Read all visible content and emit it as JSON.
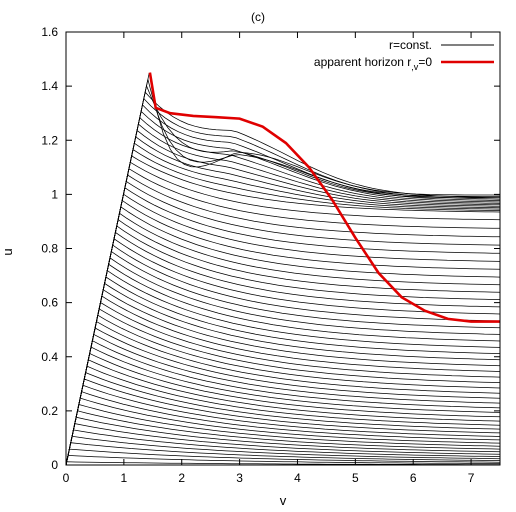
{
  "chart_data": {
    "type": "line",
    "title": "(c)",
    "xlabel": "v",
    "ylabel": "u",
    "xlim": [
      0,
      7.5
    ],
    "ylim": [
      0,
      1.6
    ],
    "x_ticks": [
      0,
      1,
      2,
      3,
      4,
      5,
      6,
      7
    ],
    "y_ticks": [
      0,
      0.2,
      0.4,
      0.6,
      0.8,
      1,
      1.2,
      1.4,
      1.6
    ],
    "grid": false,
    "legend_position": "top-right",
    "legend": [
      {
        "label": "r=const.",
        "color": "#000000"
      },
      {
        "label_main": "apparent horizon r",
        "label_sub": ",v",
        "label_tail": "=0",
        "color": "#e00000"
      }
    ],
    "series": [
      {
        "name": "r=const.",
        "kind": "family",
        "color": "#000000",
        "curve_count": 62,
        "origin": [
          0,
          0
        ],
        "apex": [
          1.45,
          1.46
        ],
        "boundary_at_x_max": [
          1.0,
          0.0
        ],
        "mid_level_at_v3": 1.28
      },
      {
        "name": "apparent horizon r,v=0",
        "color": "#e00000",
        "x": [
          1.45,
          1.55,
          1.8,
          2.2,
          2.6,
          3.0,
          3.4,
          3.8,
          4.2,
          4.6,
          5.0,
          5.4,
          5.8,
          6.2,
          6.6,
          7.0,
          7.5
        ],
        "y": [
          1.45,
          1.32,
          1.3,
          1.29,
          1.285,
          1.28,
          1.25,
          1.19,
          1.1,
          0.98,
          0.84,
          0.71,
          0.62,
          0.57,
          0.54,
          0.53,
          0.53
        ]
      }
    ]
  }
}
